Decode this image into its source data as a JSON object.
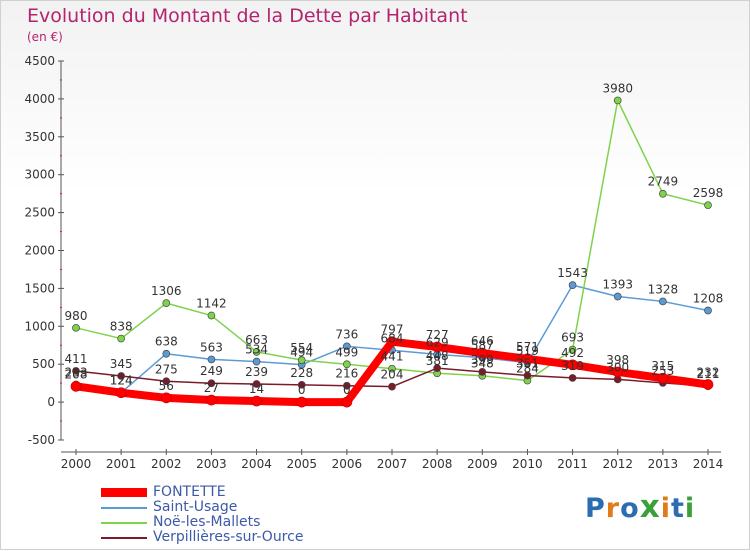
{
  "title": "Evolution du Montant de la Dette par Habitant",
  "subtitle": "(en €)",
  "logo": {
    "text": "Proxiti",
    "colors": [
      "#2a6db0",
      "#e07b1a",
      "#2a6db0",
      "#3aa037",
      "#e07b1a",
      "#2a6db0",
      "#3aa037"
    ]
  },
  "chart_data": {
    "type": "line",
    "categories": [
      "2000",
      "2001",
      "2002",
      "2003",
      "2004",
      "2005",
      "2006",
      "2007",
      "2008",
      "2009",
      "2010",
      "2011",
      "2012",
      "2013",
      "2014"
    ],
    "ylim": [
      -500,
      4500
    ],
    "yticks": [
      -500,
      0,
      500,
      1000,
      1500,
      2000,
      2500,
      3000,
      3500,
      4000,
      4500
    ],
    "grid": false,
    "legend_position": "bottom-left",
    "series": [
      {
        "name": "FONTETTE",
        "color": "#ff0000",
        "values": [
          208,
          124,
          56,
          27,
          14,
          0,
          0,
          797,
          727,
          646,
          571,
          492,
          398,
          315,
          232
        ]
      },
      {
        "name": "Saint-Usage",
        "color": "#5b9bd5",
        "values": [
          233,
          124,
          638,
          563,
          534,
          494,
          736,
          684,
          629,
          587,
          519,
          1543,
          1393,
          1328,
          1208
        ]
      },
      {
        "name": "Noë-les-Mallets",
        "color": "#7fd34a",
        "values": [
          980,
          838,
          1306,
          1142,
          663,
          554,
          499,
          441,
          381,
          348,
          284,
          693,
          3980,
          2749,
          2598
        ]
      },
      {
        "name": "Verpillières-sur-Ource",
        "color": "#7b1b2a",
        "values": [
          411,
          345,
          275,
          249,
          239,
          228,
          216,
          204,
          448,
          399,
          351,
          319,
          300,
          253,
          211
        ]
      }
    ]
  }
}
